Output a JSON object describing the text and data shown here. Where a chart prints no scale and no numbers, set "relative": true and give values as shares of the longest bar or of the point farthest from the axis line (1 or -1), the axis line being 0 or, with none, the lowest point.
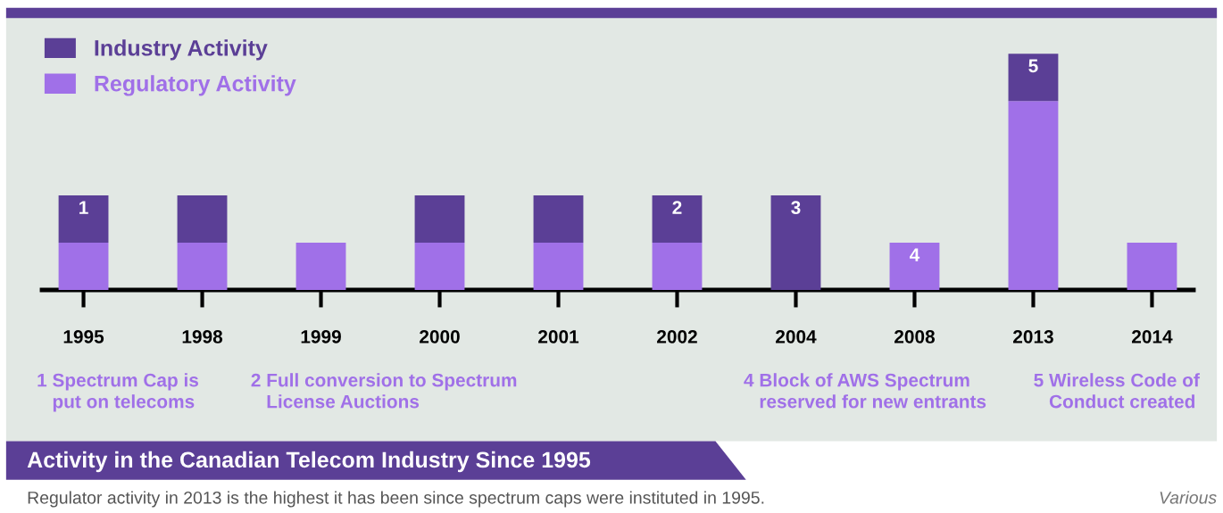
{
  "chart_data": {
    "type": "bar",
    "stacked": true,
    "relative": true,
    "title": "Activity in the Canadian Telecom Industry Since 1995",
    "subtitle": "Regulator activity in 2013 is the highest it has been since spectrum caps were instituted in 1995.",
    "categories": [
      "1995",
      "1998",
      "1999",
      "2000",
      "2001",
      "2002",
      "2004",
      "2008",
      "2013",
      "2014"
    ],
    "legend": "top left",
    "grid": false,
    "series": [
      {
        "name": "Regulatory Activity",
        "color": "#a070e8",
        "values": [
          0.2,
          0.2,
          0.2,
          0.2,
          0.2,
          0.2,
          null,
          0.2,
          0.8,
          0.2
        ]
      },
      {
        "name": "Industry Activity",
        "color": "#5b3f96",
        "values": [
          0.2,
          0.2,
          null,
          0.2,
          0.2,
          0.2,
          0.4,
          null,
          0.2,
          null
        ]
      }
    ],
    "annotations": [
      {
        "text": "1",
        "x": "1995",
        "y": 0.4
      },
      {
        "text": "2",
        "x": "2002",
        "y": 0.4
      },
      {
        "text": "3",
        "x": "2004",
        "y": 0.4
      },
      {
        "text": "4",
        "x": "2008",
        "y": 0.2
      },
      {
        "text": "5",
        "x": "2013",
        "y": 1.0
      },
      "1 Spectrum Cap is\n   put on telecoms",
      "2 Full conversion to Spectrum\n   License Auctions",
      "4 Block of AWS Spectrum\n   reserved for new entrants",
      "5 Wireless Code of\n   Conduct created",
      "Various"
    ]
  }
}
